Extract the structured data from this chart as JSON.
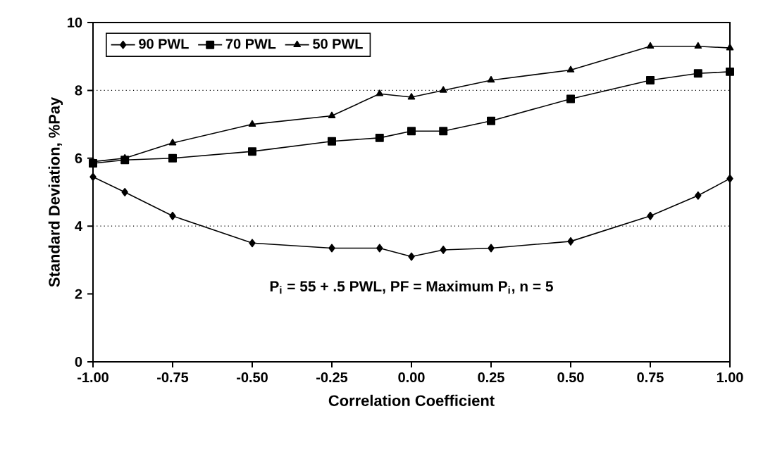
{
  "chart_data": {
    "type": "line",
    "xlabel": "Correlation Coefficient",
    "ylabel": "Standard Deviation, %Pay",
    "x": [
      -1,
      -0.9,
      -0.75,
      -0.5,
      -0.25,
      -0.1,
      0,
      0.1,
      0.25,
      0.5,
      0.75,
      0.9,
      1
    ],
    "series": [
      {
        "name": "90 PWL",
        "color": "#000000",
        "marker": "diamond",
        "values": [
          5.45,
          5.0,
          4.3,
          3.5,
          3.35,
          3.35,
          3.1,
          3.3,
          3.35,
          3.55,
          4.3,
          4.9,
          5.4
        ]
      },
      {
        "name": "70 PWL",
        "color": "#000000",
        "marker": "square",
        "values": [
          5.85,
          5.95,
          6.0,
          6.2,
          6.5,
          6.6,
          6.8,
          6.8,
          7.1,
          7.75,
          8.3,
          8.5,
          8.55
        ]
      },
      {
        "name": "50 PWL",
        "color": "#000000",
        "marker": "triangle",
        "values": [
          5.9,
          6.0,
          6.45,
          7.0,
          7.25,
          7.9,
          7.8,
          8.0,
          8.3,
          8.6,
          9.3,
          9.3,
          9.25
        ]
      }
    ],
    "xlim": [
      -1,
      1
    ],
    "xticks": [
      {
        "value": -1,
        "label": "-1.00"
      },
      {
        "value": -0.75,
        "label": "-0.75"
      },
      {
        "value": -0.5,
        "label": "-0.50"
      },
      {
        "value": -0.25,
        "label": "-0.25"
      },
      {
        "value": 0,
        "label": "0.00"
      },
      {
        "value": 0.25,
        "label": "0.25"
      },
      {
        "value": 0.5,
        "label": "0.50"
      },
      {
        "value": 0.75,
        "label": "0.75"
      },
      {
        "value": 1,
        "label": "1.00"
      }
    ],
    "ylim": [
      0,
      10
    ],
    "yticks": [
      0,
      2,
      4,
      6,
      8,
      10
    ],
    "ref_lines": [
      {
        "axis": "y",
        "value": 4,
        "line_style": "dotted"
      },
      {
        "axis": "y",
        "value": 8,
        "line_style": "dotted"
      }
    ],
    "annotations": [
      "P$_{i}$ = 55 + .5 PWL, PF = Maximum P$_{i}$, n = 5"
    ],
    "legend": "top left",
    "line_style": "solid"
  }
}
